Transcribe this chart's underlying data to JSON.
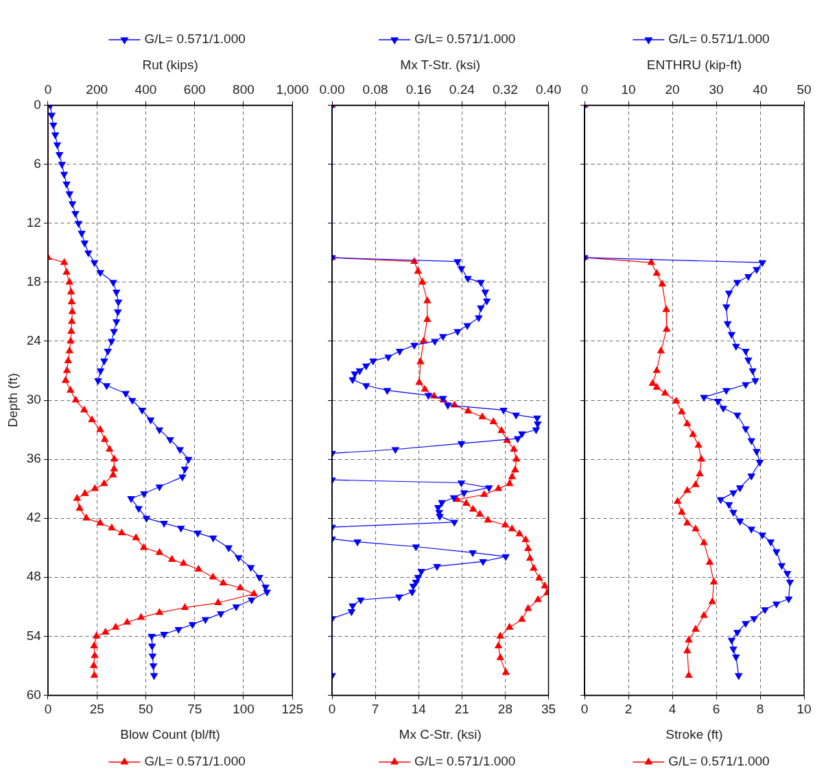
{
  "chart_data": [
    {
      "type": "line",
      "xlabel": "Blow Count (bl/ft)",
      "x2label": "Rut (kips)",
      "ylabel": "Depth (ft)",
      "xlim": [
        0,
        125
      ],
      "xticks": [
        0,
        25,
        50,
        75,
        100,
        125
      ],
      "x2lim": [
        0,
        1000
      ],
      "x2ticks": [
        0,
        200,
        400,
        600,
        800,
        {
          "value": 1000,
          "label": "1,000"
        }
      ],
      "ylim": [
        60,
        0
      ],
      "yticks": [
        0,
        6,
        12,
        18,
        24,
        30,
        36,
        42,
        48,
        54,
        60
      ],
      "grid": true,
      "legend": "top",
      "marker": "triangle",
      "series": [
        {
          "name": "G/L= 0.571/1.000",
          "color": "#0000ff",
          "axis": "x2",
          "x": [
            10,
            15,
            22,
            30,
            38,
            47,
            57,
            66,
            76,
            88,
            100,
            112,
            125,
            138,
            150,
            165,
            190,
            214,
            267,
            280,
            288,
            286,
            280,
            270,
            260,
            245,
            230,
            215,
            205,
            240,
            318,
            345,
            385,
            420,
            456,
            500,
            540,
            575,
            560,
            550,
            456,
            393,
            340,
            371,
            403,
            475,
            544,
            613,
            676,
            739,
            780,
            830,
            865,
            890,
            896,
            833,
            770,
            707,
            644,
            591,
            534,
            475,
            424,
            426,
            428,
            431,
            434
          ],
          "values": [
            0,
            1,
            2,
            3,
            4,
            5,
            6,
            7,
            8,
            9,
            10,
            11,
            12,
            13,
            14,
            15,
            16,
            17,
            18,
            19,
            20,
            21,
            22,
            23,
            24,
            25,
            26,
            27,
            28,
            28.5,
            29.3,
            30,
            31,
            32,
            33,
            34,
            35,
            36,
            37,
            37.8,
            38.8,
            39.5,
            40,
            41,
            42,
            42.5,
            43,
            43.5,
            44,
            45,
            46,
            47,
            48,
            49,
            49.5,
            50.3,
            51,
            51.7,
            52.3,
            52.8,
            53.3,
            53.8,
            54,
            55,
            56,
            57,
            58
          ]
        },
        {
          "name": "G/L= 0.571/1.000",
          "color": "#ff0000",
          "x": [
            0,
            0,
            8.3,
            9.5,
            11,
            11.8,
            12.1,
            12.4,
            12.2,
            11.9,
            11.6,
            11,
            10.3,
            9.7,
            9,
            11.5,
            14.2,
            18.5,
            22.5,
            26.7,
            29,
            31.5,
            33.9,
            33.8,
            33.3,
            28.7,
            24,
            18.9,
            14.9,
            16.2,
            19.6,
            26.7,
            32.6,
            37.7,
            45,
            49,
            57,
            63.4,
            69.3,
            77,
            84.4,
            89.6,
            98.3,
            105.3,
            87,
            70,
            57,
            47.6,
            40.5,
            34.6,
            29.4,
            24.8,
            23.6,
            23.9,
            23.4,
            23.7
          ],
          "values": [
            0,
            15.5,
            16,
            17,
            18,
            19,
            20,
            21,
            22,
            23,
            24,
            25,
            26,
            27,
            28,
            29,
            30,
            31,
            32,
            33,
            34,
            35,
            36,
            37,
            37.6,
            38.5,
            39,
            39.5,
            40,
            41,
            42,
            42.5,
            43,
            43.5,
            44,
            45,
            45.5,
            46.2,
            46.6,
            47.2,
            48,
            48.6,
            49.1,
            49.7,
            50.6,
            51.1,
            51.6,
            52.1,
            52.6,
            53.1,
            53.6,
            54,
            55,
            56,
            57,
            58
          ]
        }
      ]
    },
    {
      "type": "line",
      "xlabel": "Mx C-Str. (ksi)",
      "x2label": "Mx T-Str. (ksi)",
      "xlim": [
        0,
        35
      ],
      "xticks": [
        0,
        7,
        14,
        21,
        28,
        35
      ],
      "x2lim": [
        0,
        0.4
      ],
      "x2ticks": [
        {
          "value": 0,
          "label": "0.00"
        },
        {
          "value": 0.08,
          "label": "0.08"
        },
        {
          "value": 0.16,
          "label": "0.16"
        },
        {
          "value": 0.24,
          "label": "0.24"
        },
        {
          "value": 0.32,
          "label": "0.32"
        },
        {
          "value": 0.4,
          "label": "0.40"
        }
      ],
      "ylim": [
        60,
        0
      ],
      "yticks": [
        0,
        6,
        12,
        18,
        24,
        30,
        36,
        42,
        48,
        54,
        60
      ],
      "tick_labels": "x",
      "grid": true,
      "legend": "top",
      "marker": "triangle",
      "series": [
        {
          "name": "G/L= 0.571/1.000",
          "color": "#0000ff",
          "axis": "x2",
          "x": [
            0,
            0,
            0.232,
            0.239,
            0.251,
            0.275,
            0.283,
            0.286,
            0.275,
            0.271,
            0.25,
            0.232,
            0.205,
            0.19,
            0.152,
            0.125,
            0.104,
            0.076,
            0.063,
            0.051,
            0.042,
            0.038,
            0.063,
            0.102,
            0.178,
            0.205,
            0.214,
            0.317,
            0.34,
            0.379,
            0.38,
            0.377,
            0.351,
            0.343,
            0.239,
            0.117,
            0,
            0,
            0.239,
            0.29,
            0.244,
            0.225,
            0.203,
            0.196,
            0.198,
            0.199,
            0.226,
            0,
            0,
            0.047,
            0.155,
            0.26,
            0.321,
            0.279,
            0.194,
            0.165,
            0.159,
            0.155,
            0.15,
            0.148,
            0.124,
            0.053,
            0.038,
            0.036,
            0,
            0
          ],
          "values": [
            0,
            15.5,
            15.9,
            16.6,
            17.6,
            18,
            19,
            19.9,
            20.6,
            21.6,
            22.4,
            23,
            23.5,
            24,
            24.4,
            25,
            25.6,
            26,
            26.5,
            27,
            27.3,
            27.9,
            28.5,
            29,
            29.5,
            29.8,
            30.5,
            31,
            31.5,
            31.8,
            32.4,
            33,
            33.4,
            33.9,
            34.4,
            35,
            35.4,
            38.1,
            38.4,
            38.9,
            39.4,
            39.9,
            40.4,
            40.9,
            41.4,
            41.8,
            42.4,
            42.9,
            44.1,
            44.4,
            44.9,
            45.5,
            45.9,
            46.4,
            46.9,
            47.4,
            48,
            48.5,
            48.9,
            49.5,
            50,
            50.3,
            50.9,
            51.5,
            52.2,
            58
          ]
        },
        {
          "name": "G/L= 0.571/1.000",
          "color": "#ff0000",
          "x": [
            0,
            0,
            13.3,
            13.9,
            14.6,
            15.4,
            15.4,
            14.8,
            14.3,
            14.1,
            15,
            16.5,
            18,
            19.8,
            22,
            24.3,
            26.1,
            27.4,
            28.3,
            29.4,
            29.8,
            29.6,
            29.1,
            28.7,
            26.9,
            24.6,
            20.2,
            21.7,
            22.8,
            23.9,
            25.2,
            28,
            29.1,
            30.3,
            31.3,
            31.7,
            32,
            32.6,
            33.5,
            34.4,
            34.8,
            33.3,
            31.7,
            30.7,
            28.7,
            27.2,
            26.9,
            27.2,
            28.1
          ],
          "values": [
            0,
            15.5,
            15.9,
            16.9,
            18,
            19.9,
            21.8,
            24,
            26.1,
            28.2,
            28.9,
            29.6,
            30,
            30.5,
            31.1,
            31.7,
            32.2,
            33.1,
            34.1,
            35,
            36,
            37.1,
            37.8,
            38.5,
            39,
            39.6,
            40.1,
            40.5,
            41.1,
            41.6,
            42.2,
            42.7,
            43.1,
            43.6,
            44.2,
            45.1,
            46.1,
            47.1,
            48.1,
            48.9,
            49.6,
            50.3,
            51.2,
            52.3,
            53.1,
            54,
            55,
            56.2,
            57.7
          ]
        }
      ]
    },
    {
      "type": "line",
      "xlabel": "Stroke (ft)",
      "x2label": "ENTHRU (kip-ft)",
      "xlim": [
        0,
        10
      ],
      "xticks": [
        0,
        2,
        4,
        6,
        8,
        10
      ],
      "x2lim": [
        0,
        50
      ],
      "x2ticks": [
        0,
        10,
        20,
        30,
        40,
        50
      ],
      "ylim": [
        60,
        0
      ],
      "yticks": [
        0,
        6,
        12,
        18,
        24,
        30,
        36,
        42,
        48,
        54,
        60
      ],
      "tick_labels": "x",
      "grid": true,
      "legend": "top",
      "marker": "triangle",
      "series": [
        {
          "name": "G/L= 0.571/1.000",
          "color": "#0000ff",
          "axis": "x2",
          "x": [
            0,
            0,
            40.5,
            39.2,
            37.3,
            34.8,
            32.9,
            32.3,
            32.6,
            33.5,
            34.5,
            36.7,
            37.3,
            38.3,
            38.9,
            36.7,
            32.3,
            27.2,
            30.4,
            31.6,
            34.8,
            36.7,
            38,
            39.2,
            39.9,
            38,
            35.4,
            33.9,
            31,
            32.9,
            33.9,
            35.4,
            38,
            40.5,
            42.4,
            43.7,
            44.9,
            46.2,
            46.8,
            46.5,
            43.7,
            41.1,
            38.6,
            36.7,
            34.8,
            33.5,
            33.9,
            34.5,
            35.1
          ],
          "values": [
            0,
            15.5,
            16,
            16.7,
            17.4,
            18,
            19.1,
            20.5,
            22.2,
            23.3,
            24.5,
            25,
            25.9,
            27,
            28,
            28.4,
            29,
            29.7,
            30.1,
            30.8,
            31.5,
            32.9,
            34.1,
            35.2,
            36.3,
            37.7,
            38.9,
            39.4,
            40.1,
            40.6,
            41.4,
            42.3,
            43.1,
            43.7,
            44.4,
            45.4,
            46.8,
            47.6,
            48.5,
            50.2,
            50.7,
            51.3,
            52.2,
            52.7,
            53.6,
            54.4,
            55.3,
            56.1,
            58
          ]
        },
        {
          "name": "G/L= 0.571/1.000",
          "color": "#ff0000",
          "x": [
            0,
            0,
            3.04,
            3.29,
            3.54,
            3.72,
            3.74,
            3.48,
            3.29,
            3.1,
            3.29,
            3.67,
            4.18,
            4.43,
            4.68,
            4.94,
            5.19,
            5.32,
            5.25,
            5.06,
            4.68,
            4.24,
            4.43,
            4.68,
            5.06,
            5.44,
            5.7,
            5.89,
            5.82,
            5.44,
            5.06,
            4.75,
            4.68,
            4.75
          ],
          "values": [
            0,
            15.5,
            16,
            17.1,
            18.2,
            20.8,
            22.8,
            25,
            27,
            28.3,
            28.7,
            29.3,
            30.1,
            31.2,
            32.4,
            33.5,
            34.6,
            36,
            37.5,
            38.6,
            39.2,
            40.3,
            41.4,
            42.5,
            43.1,
            44.5,
            46.5,
            48.5,
            50.5,
            51.9,
            53.3,
            54.4,
            55.5,
            58
          ]
        }
      ]
    }
  ]
}
